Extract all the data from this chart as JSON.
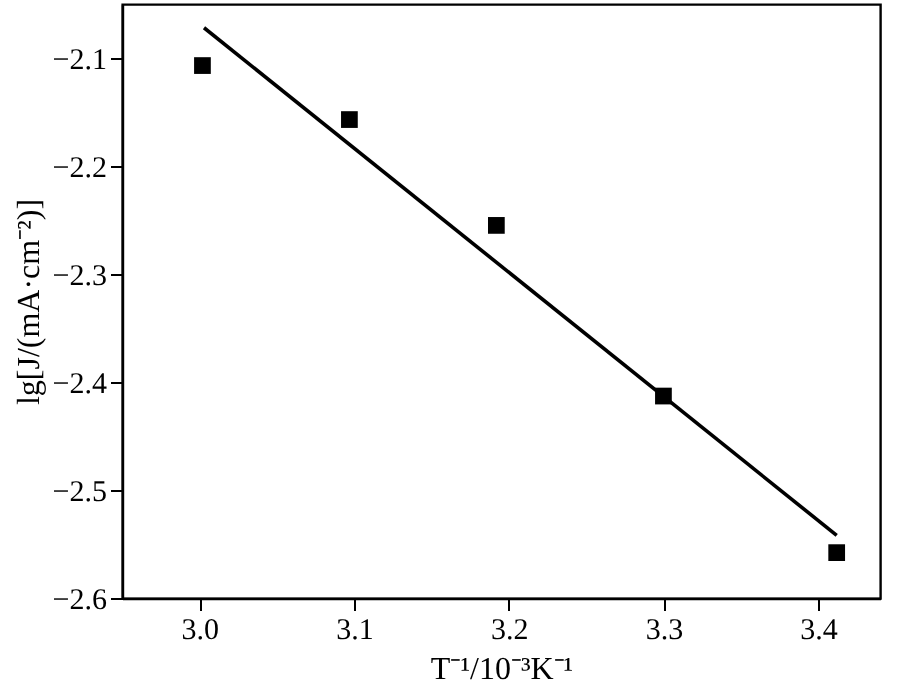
{
  "chart_data": {
    "type": "scatter",
    "xlabel": "T⁻¹/10⁻³K⁻¹",
    "ylabel": "lg[J/(mA·cm⁻²)]",
    "xlim": [
      2.95,
      3.44
    ],
    "ylim": [
      -2.6,
      -2.05
    ],
    "xticks": [
      {
        "value": 3.0,
        "label": "3.0"
      },
      3.1,
      3.2,
      3.3,
      3.4
    ],
    "yticks": [
      -2.6,
      -2.5,
      -2.4,
      -2.3,
      -2.2,
      -2.1
    ],
    "series": [
      {
        "color": "#000000",
        "marker": "square",
        "x": [
          3.002,
          3.097,
          3.192,
          3.3,
          3.412
        ],
        "values": [
          -2.107,
          -2.157,
          -2.255,
          -2.413,
          -2.558
        ]
      },
      {
        "type": "line",
        "color": "#000000",
        "x": [
          3.003,
          3.412
        ],
        "values": [
          -2.072,
          -2.542
        ]
      }
    ]
  }
}
